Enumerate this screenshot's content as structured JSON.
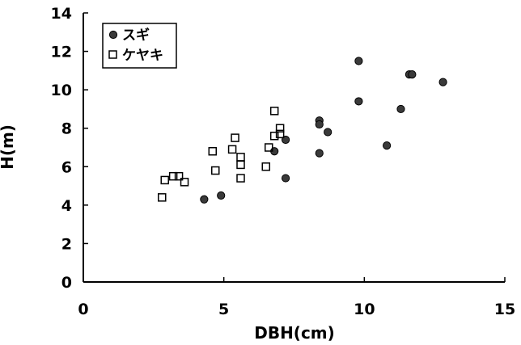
{
  "chart_data": {
    "type": "scatter",
    "xlabel": "DBH(cm)",
    "ylabel": "H(m)",
    "xlim": [
      0,
      15
    ],
    "ylim": [
      0,
      14
    ],
    "x_ticks": [
      "0",
      "5",
      "10",
      "15"
    ],
    "y_ticks": [
      "0",
      "2",
      "4",
      "6",
      "8",
      "10",
      "12",
      "14"
    ],
    "grid": false,
    "legend_position": "top-left",
    "series": [
      {
        "name": "スギ",
        "marker": "filled-circle",
        "color": "#3a3a3a",
        "points": [
          [
            4.3,
            4.3
          ],
          [
            4.9,
            4.5
          ],
          [
            6.8,
            6.8
          ],
          [
            7.2,
            7.4
          ],
          [
            7.2,
            5.4
          ],
          [
            8.4,
            8.4
          ],
          [
            8.4,
            8.2
          ],
          [
            8.4,
            6.7
          ],
          [
            8.7,
            7.8
          ],
          [
            9.8,
            11.5
          ],
          [
            9.8,
            9.4
          ],
          [
            10.8,
            7.1
          ],
          [
            11.3,
            9.0
          ],
          [
            11.6,
            10.8
          ],
          [
            11.7,
            10.8
          ],
          [
            12.8,
            10.4
          ]
        ]
      },
      {
        "name": "ケヤキ",
        "marker": "open-square",
        "color": "#000000",
        "points": [
          [
            2.8,
            4.4
          ],
          [
            2.9,
            5.3
          ],
          [
            3.2,
            5.5
          ],
          [
            3.4,
            5.5
          ],
          [
            3.6,
            5.2
          ],
          [
            4.6,
            6.8
          ],
          [
            4.7,
            5.8
          ],
          [
            5.3,
            6.9
          ],
          [
            5.4,
            7.5
          ],
          [
            5.6,
            6.5
          ],
          [
            5.6,
            6.1
          ],
          [
            5.6,
            5.4
          ],
          [
            6.5,
            6.0
          ],
          [
            6.6,
            7.0
          ],
          [
            6.8,
            8.9
          ],
          [
            6.8,
            7.6
          ],
          [
            7.0,
            8.0
          ],
          [
            7.0,
            7.7
          ]
        ]
      }
    ]
  }
}
